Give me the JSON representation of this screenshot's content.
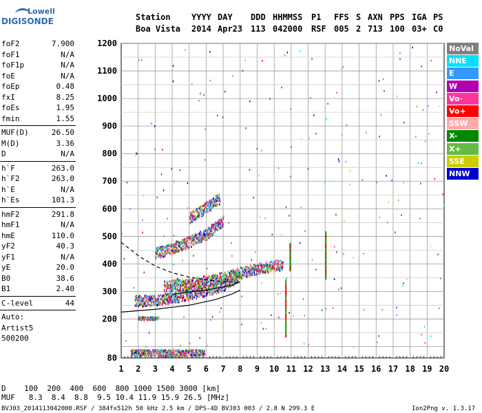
{
  "logo": {
    "line1": "Lowell",
    "line2": "DIGISONDE"
  },
  "header": {
    "labels": [
      "Station",
      "YYYY",
      "DAY",
      "DDD",
      "HHMMSS",
      "P1",
      "FFS",
      "S",
      "AXN",
      "PPS",
      "IGA",
      "PS"
    ],
    "values": [
      "Boa Vista",
      "2014",
      "Apr23",
      "113",
      "042000",
      "RSF",
      "005",
      "2",
      "713",
      "100",
      "03+",
      "C0"
    ]
  },
  "params": [
    {
      "k": "foF2",
      "v": "7.900"
    },
    {
      "k": "foF1",
      "v": "N/A"
    },
    {
      "k": "foF1p",
      "v": "N/A"
    },
    {
      "k": "foE",
      "v": "N/A"
    },
    {
      "k": "foEp",
      "v": "0.48"
    },
    {
      "k": "fxI",
      "v": "8.25"
    },
    {
      "k": "foEs",
      "v": "1.95"
    },
    {
      "k": "fmin",
      "v": "1.55"
    },
    {
      "k": "MUF(D)",
      "v": "26.50"
    },
    {
      "k": "M(D)",
      "v": "3.36"
    },
    {
      "k": "D",
      "v": "N/A"
    },
    {
      "k": "h`F",
      "v": "263.0"
    },
    {
      "k": "h`F2",
      "v": "263.0"
    },
    {
      "k": "h`E",
      "v": "N/A"
    },
    {
      "k": "h`Es",
      "v": "101.3"
    },
    {
      "k": "hmF2",
      "v": "291.8"
    },
    {
      "k": "hmF1",
      "v": "N/A"
    },
    {
      "k": "hmE",
      "v": "110.0"
    },
    {
      "k": "yF2",
      "v": "40.3"
    },
    {
      "k": "yF1",
      "v": "N/A"
    },
    {
      "k": "yE",
      "v": "20.0"
    },
    {
      "k": "B0",
      "v": "38.6"
    },
    {
      "k": "B1",
      "v": "2.40"
    },
    {
      "k": "C-level",
      "v": "44"
    },
    {
      "k": "Auto:",
      "v": ""
    },
    {
      "k": "Artist5",
      "v": ""
    },
    {
      "k": "500200",
      "v": ""
    }
  ],
  "legend": [
    {
      "label": "NoVal",
      "color": "#808080"
    },
    {
      "label": "NNE",
      "color": "#00e0ff"
    },
    {
      "label": "E",
      "color": "#3399ff"
    },
    {
      "label": "W",
      "color": "#b000b0"
    },
    {
      "label": "Vo-",
      "color": "#ff3399"
    },
    {
      "label": "Vo+",
      "color": "#ff0000"
    },
    {
      "label": "SSW",
      "color": "#ffaaaa"
    },
    {
      "label": "X-",
      "color": "#008800"
    },
    {
      "label": "X+",
      "color": "#66bb44"
    },
    {
      "label": "SSE",
      "color": "#cccc00"
    },
    {
      "label": "NNW",
      "color": "#0000cc"
    }
  ],
  "footer": {
    "d_row": "D    100  200  400  600  800 1000 1500 3000 [km]",
    "muf_row": "MUF   8.3  8.4  8.8  9.5 10.4 11.9 15.9 26.5 [MHz]",
    "file_line": "BVJ03_2014113042000.RSF / 384fx512h 50 kHz 2.5 km / DPS-4D BVJ03 003 / 2.8 N 299.3 E",
    "version": "Ion2Png v. 1.3.17"
  },
  "chart_data": {
    "type": "scatter",
    "xlabel": "",
    "ylabel": "",
    "xlim": [
      1,
      20
    ],
    "ylim": [
      80,
      1200
    ],
    "x_ticks": [
      1,
      2,
      3,
      4,
      5,
      6,
      7,
      8,
      9,
      10,
      11,
      12,
      13,
      14,
      15,
      16,
      17,
      18,
      19,
      20
    ],
    "y_ticks": [
      80,
      100,
      200,
      300,
      400,
      500,
      600,
      700,
      800,
      900,
      1000,
      1100,
      1200
    ],
    "y_tick_labels": [
      "80",
      "",
      "200",
      "300",
      "400",
      "500",
      "600",
      "700",
      "800",
      "900",
      "1000",
      "1100",
      "1200"
    ],
    "grid": true,
    "echo_traces": [
      {
        "name": "Es",
        "x": [
          1.55,
          5.9
        ],
        "y": [
          90,
          90
        ]
      },
      {
        "name": "Es-2",
        "x": [
          2.0,
          3.2
        ],
        "y": [
          205,
          205
        ]
      },
      {
        "name": "F-O",
        "x": [
          1.8,
          3.0,
          4.0,
          5.0,
          6.0,
          7.0,
          7.9
        ],
        "y": [
          268,
          270,
          280,
          292,
          305,
          325,
          360
        ]
      },
      {
        "name": "F-X",
        "x": [
          3.5,
          5.0,
          6.5,
          8.0,
          9.0,
          10.5
        ],
        "y": [
          320,
          330,
          345,
          370,
          385,
          400
        ]
      },
      {
        "name": "2F",
        "x": [
          3.0,
          4.5,
          6.0,
          7.0
        ],
        "y": [
          440,
          470,
          510,
          560
        ]
      },
      {
        "name": "3F",
        "x": [
          5.0,
          5.8,
          6.8
        ],
        "y": [
          570,
          600,
          640
        ]
      }
    ],
    "profile_curves": [
      {
        "name": "true-height",
        "x": [
          1,
          3,
          5,
          6.5,
          7.5,
          8.0
        ],
        "y": [
          225,
          235,
          250,
          270,
          290,
          305
        ]
      },
      {
        "name": "virtual-height",
        "x": [
          4,
          6,
          7.5,
          8.0
        ],
        "y": [
          290,
          305,
          322,
          335
        ]
      },
      {
        "name": "topside-dashed",
        "x": [
          1,
          2,
          3,
          4,
          5,
          6,
          7,
          8
        ],
        "y": [
          478,
          430,
          392,
          368,
          352,
          342,
          336,
          332
        ]
      }
    ],
    "spike_traces": [
      {
        "x": 10.65,
        "y": [
          140,
          350
        ]
      },
      {
        "x": 10.9,
        "y": [
          380,
          480
        ]
      },
      {
        "x": 13.0,
        "y": [
          350,
          520
        ]
      }
    ]
  }
}
